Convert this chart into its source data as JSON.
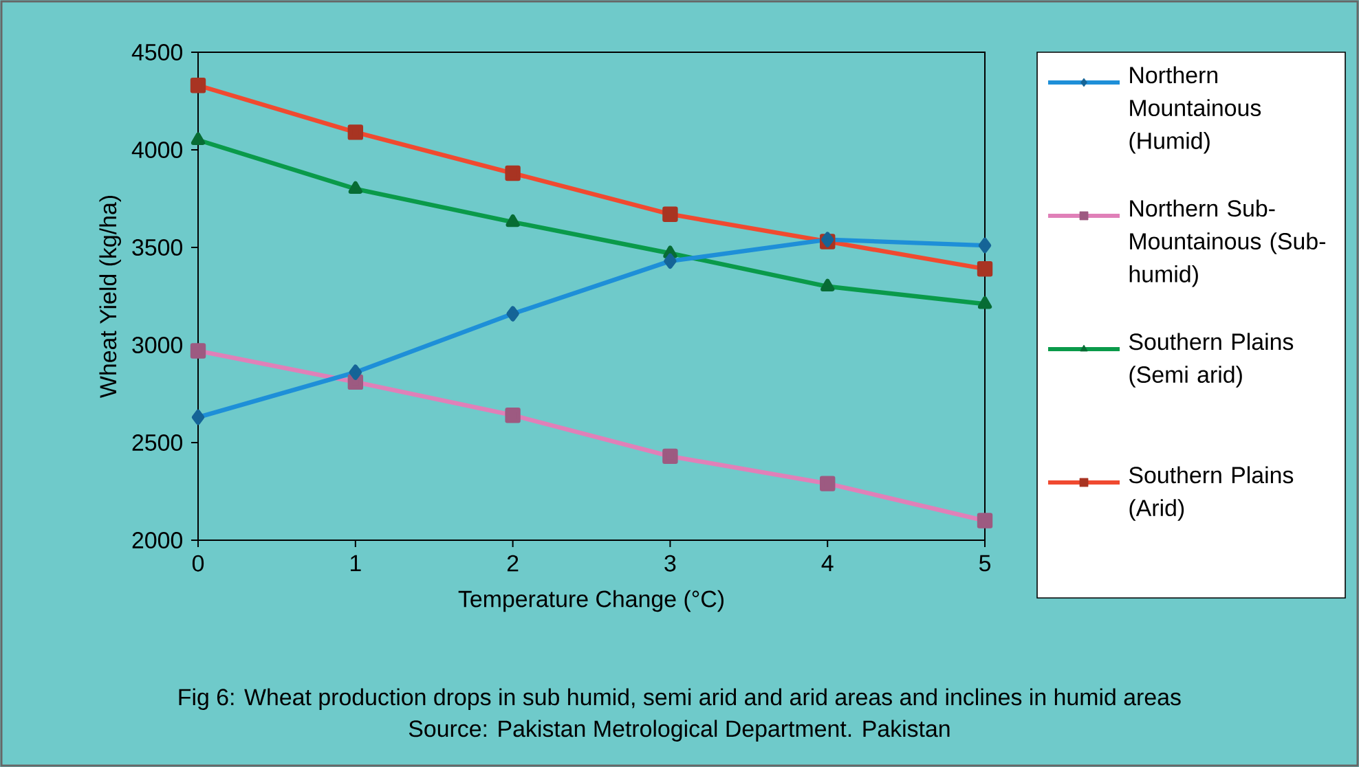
{
  "chart_data": {
    "type": "line",
    "xlabel": "Temperature Change (°C)",
    "ylabel": "Wheat Yield (kg/ha)",
    "annotations": [
      "Fig 6: Wheat production drops in sub humid, semi arid and arid areas and inclines in humid areas",
      "Source: Pakistan Metrological Department. Pakistan"
    ],
    "x": [
      0,
      1,
      2,
      3,
      4,
      5
    ],
    "series": [
      {
        "name": "Northern Mountainous (Humid)",
        "color": "#1e8fd8",
        "marker": "diamond",
        "values": [
          2630,
          2860,
          3160,
          3430,
          3540,
          3510
        ]
      },
      {
        "name": "Northern Sub-Mountainous (Sub-humid)",
        "color": "#e080b8",
        "marker": "square",
        "values": [
          2970,
          2810,
          2640,
          2430,
          2290,
          2100
        ]
      },
      {
        "name": "Southern Plains (Semi arid)",
        "color": "#0a9a4a",
        "marker": "triangle",
        "values": [
          4050,
          3800,
          3630,
          3470,
          3300,
          3210
        ]
      },
      {
        "name": "Southern Plains (Arid)",
        "color": "#f04a30",
        "marker": "square",
        "values": [
          4330,
          4090,
          3880,
          3670,
          3530,
          3390
        ]
      }
    ],
    "xlim": [
      0,
      5
    ],
    "ylim": [
      2000,
      4500
    ],
    "xticks": [
      0,
      1,
      2,
      3,
      4,
      5
    ],
    "yticks": [
      2000,
      2500,
      3000,
      3500,
      4000,
      4500
    ],
    "grid": false,
    "legend": "right"
  }
}
